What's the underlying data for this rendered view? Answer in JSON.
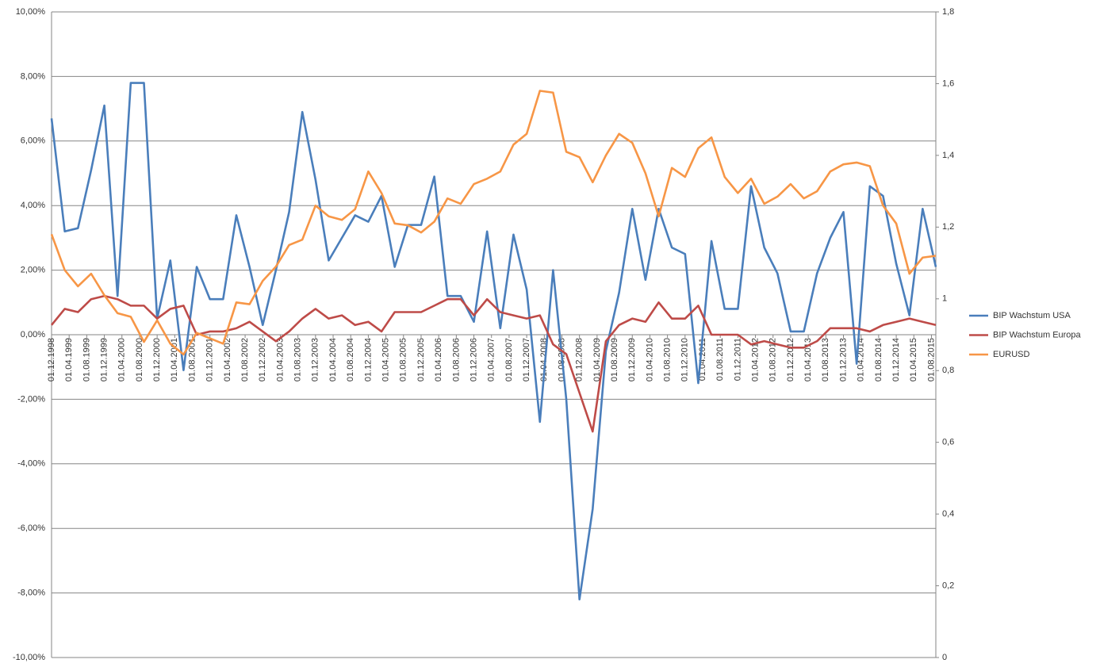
{
  "chart_data": {
    "type": "line",
    "x": [
      "01.12.1998",
      "01.03.1999",
      "01.06.1999",
      "01.09.1999",
      "01.12.1999",
      "01.03.2000",
      "01.06.2000",
      "01.09.2000",
      "01.12.2000",
      "01.03.2001",
      "01.06.2001",
      "01.09.2001",
      "01.12.2001",
      "01.03.2002",
      "01.06.2002",
      "01.09.2002",
      "01.12.2002",
      "01.03.2003",
      "01.06.2003",
      "01.09.2003",
      "01.12.2003",
      "01.03.2004",
      "01.06.2004",
      "01.09.2004",
      "01.12.2004",
      "01.03.2005",
      "01.06.2005",
      "01.09.2005",
      "01.12.2005",
      "01.03.2006",
      "01.06.2006",
      "01.09.2006",
      "01.12.2006",
      "01.03.2007",
      "01.06.2007",
      "01.09.2007",
      "01.12.2007",
      "01.03.2008",
      "01.06.2008",
      "01.09.2008",
      "01.12.2008",
      "01.03.2009",
      "01.06.2009",
      "01.09.2009",
      "01.12.2009",
      "01.03.2010",
      "01.06.2010",
      "01.09.2010",
      "01.12.2010",
      "01.03.2011",
      "01.06.2011",
      "01.09.2011",
      "01.12.2011",
      "01.03.2012",
      "01.06.2012",
      "01.09.2012",
      "01.12.2012",
      "01.03.2013",
      "01.06.2013",
      "01.09.2013",
      "01.12.2013",
      "01.03.2014",
      "01.06.2014",
      "01.09.2014",
      "01.12.2014",
      "01.03.2015",
      "01.06.2015",
      "01.09.2015"
    ],
    "xlim": [
      "01.12.1998",
      "01.09.2015"
    ],
    "xticks": [
      "01.12.1998",
      "01.04.1999",
      "01.08.1999",
      "01.12.1999",
      "01.04.2000",
      "01.08.2000",
      "01.12.2000",
      "01.04.2001",
      "01.08.2001",
      "01.12.2001",
      "01.04.2002",
      "01.08.2002",
      "01.12.2002",
      "01.04.2003",
      "01.08.2003",
      "01.12.2003",
      "01.04.2004",
      "01.08.2004",
      "01.12.2004",
      "01.04.2005",
      "01.08.2005",
      "01.12.2005",
      "01.04.2006",
      "01.08.2006",
      "01.12.2006",
      "01.04.2007",
      "01.08.2007",
      "01.12.2007",
      "01.04.2008",
      "01.08.2008",
      "01.12.2008",
      "01.04.2009",
      "01.08.2009",
      "01.12.2009",
      "01.04.2010",
      "01.08.2010",
      "01.12.2010",
      "01.04.2011",
      "01.08.2011",
      "01.12.2011",
      "01.04.2012",
      "01.08.2012",
      "01.12.2012",
      "01.04.2013",
      "01.08.2013",
      "01.12.2013",
      "01.04.2014",
      "01.08.2014",
      "01.12.2014",
      "01.04.2015",
      "01.08.2015"
    ],
    "ylim": [
      -10,
      10
    ],
    "yticks": [
      {
        "value": -10,
        "label": "-10,00%"
      },
      {
        "value": -8,
        "label": "-8,00%"
      },
      {
        "value": -6,
        "label": "-6,00%"
      },
      {
        "value": -4,
        "label": "-4,00%"
      },
      {
        "value": -2,
        "label": "-2,00%"
      },
      {
        "value": 0,
        "label": "0,00%"
      },
      {
        "value": 2,
        "label": "2,00%"
      },
      {
        "value": 4,
        "label": "4,00%"
      },
      {
        "value": 6,
        "label": "6,00%"
      },
      {
        "value": 8,
        "label": "8,00%"
      },
      {
        "value": 10,
        "label": "10,00%"
      }
    ],
    "y2lim": [
      0,
      1.8
    ],
    "y2ticks": [
      0,
      {
        "value": 0.2,
        "label": "0,2"
      },
      {
        "value": 0.4,
        "label": "0,4"
      },
      {
        "value": 0.6,
        "label": "0,6"
      },
      {
        "value": 0.8,
        "label": "0,8"
      },
      1,
      {
        "value": 1.2,
        "label": "1,2"
      },
      {
        "value": 1.4,
        "label": "1,4"
      },
      {
        "value": 1.6,
        "label": "1,6"
      },
      {
        "value": 1.8,
        "label": "1,8"
      }
    ],
    "grid": true,
    "legend": "right",
    "series": [
      {
        "name": "BIP Wachstum USA",
        "color": "#4a7ebb",
        "values": [
          6.7,
          3.2,
          3.3,
          5.1,
          7.1,
          1.2,
          7.8,
          7.8,
          0.5,
          2.3,
          -1.1,
          2.1,
          1.1,
          1.1,
          3.7,
          2.1,
          0.3,
          2.0,
          3.8,
          6.9,
          4.8,
          2.3,
          3.0,
          3.7,
          3.5,
          4.3,
          2.1,
          3.4,
          3.4,
          4.9,
          1.2,
          1.2,
          0.4,
          3.2,
          0.2,
          3.1,
          1.4,
          -2.7,
          2.0,
          -2.0,
          -8.2,
          -5.4,
          -0.5,
          1.3,
          3.9,
          1.7,
          3.9,
          2.7,
          2.5,
          -1.5,
          2.9,
          0.8,
          0.8,
          4.6,
          2.7,
          1.9,
          0.1,
          0.1,
          1.9,
          3.0,
          3.8,
          -0.9,
          4.6,
          4.3,
          2.2,
          0.6,
          3.9,
          2.1
        ]
      },
      {
        "name": "BIP Wachstum Europa",
        "color": "#be4b48",
        "values": [
          0.3,
          0.8,
          0.7,
          1.1,
          1.2,
          1.1,
          0.9,
          0.9,
          0.5,
          0.8,
          0.9,
          0.0,
          0.1,
          0.1,
          0.2,
          0.4,
          0.1,
          -0.2,
          0.1,
          0.5,
          0.8,
          0.5,
          0.6,
          0.3,
          0.4,
          0.1,
          0.7,
          0.7,
          0.7,
          0.9,
          1.1,
          1.1,
          0.6,
          1.1,
          0.7,
          0.6,
          0.5,
          0.6,
          -0.3,
          -0.6,
          -1.8,
          -3.0,
          -0.2,
          0.3,
          0.5,
          0.4,
          1.0,
          0.5,
          0.5,
          0.9,
          0.0,
          0.0,
          0.0,
          -0.3,
          -0.2,
          -0.3,
          -0.4,
          -0.4,
          -0.2,
          0.2,
          0.2,
          0.2,
          0.1,
          0.3,
          0.4,
          0.5,
          0.4,
          0.3
        ]
      },
      {
        "name": "EURUSD",
        "color": "#f79646",
        "axis": "y2",
        "values": [
          1.18,
          1.08,
          1.035,
          1.07,
          1.01,
          0.96,
          0.95,
          0.88,
          0.94,
          0.875,
          0.845,
          0.905,
          0.89,
          0.875,
          0.99,
          0.985,
          1.05,
          1.09,
          1.15,
          1.165,
          1.26,
          1.23,
          1.22,
          1.25,
          1.355,
          1.295,
          1.21,
          1.205,
          1.185,
          1.215,
          1.28,
          1.265,
          1.32,
          1.335,
          1.355,
          1.43,
          1.46,
          1.58,
          1.575,
          1.41,
          1.395,
          1.325,
          1.4,
          1.46,
          1.435,
          1.35,
          1.23,
          1.365,
          1.34,
          1.42,
          1.45,
          1.34,
          1.295,
          1.335,
          1.265,
          1.285,
          1.32,
          1.28,
          1.3,
          1.355,
          1.375,
          1.38,
          1.37,
          1.26,
          1.21,
          1.07,
          1.115,
          1.12
        ]
      }
    ]
  }
}
